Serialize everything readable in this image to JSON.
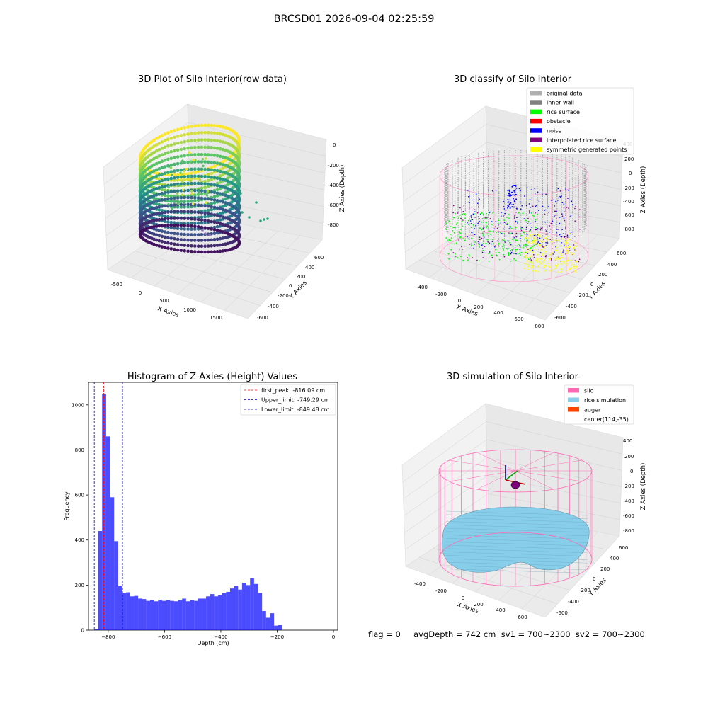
{
  "figure": {
    "suptitle": "BRCSD01 2026-09-04 02:25:59"
  },
  "footer": {
    "text": "flag = 0     avgDepth = 742 cm  sv1 = 700~2300  sv2 = 700~2300"
  },
  "chart_data": [
    {
      "type": "scatter3d",
      "title": "3D Plot of Silo Interior(row data)",
      "xlabel": "X Axies",
      "ylabel": "Y Axies",
      "zlabel": "Z Axies (Depth)",
      "x_ticks": [
        "-500",
        "0",
        "500",
        "1000",
        "1500"
      ],
      "y_ticks": [
        "600",
        "400",
        "200",
        "0",
        "-200",
        "-400",
        "-600"
      ],
      "z_ticks": [
        "0",
        "-200",
        "-400",
        "-600",
        "-800"
      ],
      "xlim": [
        -700,
        1800
      ],
      "ylim": [
        -700,
        700
      ],
      "zlim": [
        -900,
        0
      ],
      "colormap": "viridis"
    },
    {
      "type": "scatter3d",
      "title": "3D classify of Silo Interior",
      "xlabel": "X Axies",
      "ylabel": "Y Axies",
      "zlabel": "Z Axies (Depth)",
      "x_ticks": [
        "-400",
        "-200",
        "0",
        "200",
        "400",
        "600",
        "800"
      ],
      "y_ticks": [
        "600",
        "400",
        "200",
        "0",
        "-200",
        "-400",
        "-600"
      ],
      "z_ticks": [
        "400",
        "200",
        "0",
        "-200",
        "-400",
        "-600",
        "-800"
      ],
      "legend_position": "top-right",
      "legend": [
        {
          "name": "original data",
          "color": "#b0b0b0"
        },
        {
          "name": "inner wall",
          "color": "#808080"
        },
        {
          "name": "rice surface",
          "color": "#00ff00"
        },
        {
          "name": "obstacle",
          "color": "#ff0000"
        },
        {
          "name": "noise",
          "color": "#0000ff"
        },
        {
          "name": "interpolated rice surface",
          "color": "#800080"
        },
        {
          "name": "symmetric generated points",
          "color": "#ffff00"
        }
      ]
    },
    {
      "type": "bar",
      "title": "Histogram of Z-Axies (Height) Values",
      "xlabel": "Depth (cm)",
      "ylabel": "Frequency",
      "xlim": [
        -870,
        15
      ],
      "ylim": [
        0,
        1100
      ],
      "x_ticks": [
        -800,
        -600,
        -400,
        -200,
        0
      ],
      "y_ticks": [
        0,
        200,
        400,
        600,
        800,
        1000
      ],
      "bar_color": "#0000ff",
      "bin_start": -850,
      "bin_width": 14.2,
      "values": [
        5,
        440,
        1050,
        860,
        590,
        395,
        195,
        165,
        168,
        150,
        152,
        140,
        138,
        130,
        133,
        128,
        135,
        130,
        135,
        130,
        128,
        135,
        140,
        128,
        132,
        130,
        140,
        140,
        150,
        160,
        150,
        155,
        165,
        170,
        185,
        195,
        180,
        210,
        200,
        230,
        205,
        165,
        85,
        55,
        75,
        20,
        22
      ],
      "vlines": [
        {
          "label": "first_peak: -816.09 cm",
          "x": -816.09,
          "color": "#ff0000"
        },
        {
          "label": "Upper_limit: -749.29 cm",
          "x": -749.29,
          "color": "#0000cc"
        },
        {
          "label": "Lower_limit: -849.48 cm",
          "x": -849.48,
          "color": "#0000cc"
        }
      ],
      "legend_position": "top-right"
    },
    {
      "type": "surface3d",
      "title": "3D simulation of Silo Interior",
      "xlabel": "X Axies",
      "ylabel": "Y Axies",
      "zlabel": "Z Axies (Depth)",
      "x_ticks": [
        "-400",
        "-200",
        "0",
        "200",
        "400",
        "600"
      ],
      "y_ticks": [
        "600",
        "400",
        "200",
        "0",
        "-200",
        "-400",
        "-600"
      ],
      "z_ticks": [
        "400",
        "200",
        "0",
        "-200",
        "-400",
        "-600",
        "-800"
      ],
      "legend_position": "top-right",
      "legend": [
        {
          "name": "silo",
          "color": "#ff69b4"
        },
        {
          "name": "rice simulation",
          "color": "#87ceeb"
        },
        {
          "name": "auger",
          "color": "#ff4500"
        },
        {
          "name": "center(114,-35)",
          "color": ""
        }
      ]
    }
  ]
}
